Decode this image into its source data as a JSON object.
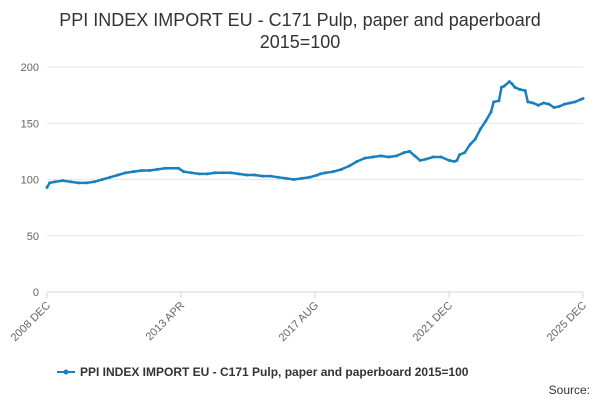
{
  "chart_data": {
    "type": "line",
    "title_lines": [
      "PPI INDEX IMPORT EU - C171 Pulp, paper and paperboard",
      "2015=100"
    ],
    "xlabel": "",
    "ylabel": "",
    "x_tick_labels": [
      "2008 DEC",
      "2013 APR",
      "2017 AUG",
      "2021 DEC",
      "2025 DEC"
    ],
    "x_range": [
      "2008-12",
      "2025-12"
    ],
    "ylim": [
      0,
      200
    ],
    "y_ticks": [
      0,
      50,
      100,
      150,
      200
    ],
    "grid": "horizontal",
    "legend_position": "bottom",
    "source_label": "Source:",
    "color": "#1a7fbf",
    "series": [
      {
        "name": "PPI INDEX IMPORT EU - C171 Pulp, paper and paperboard 2015=100",
        "points": [
          [
            "2008-12",
            93
          ],
          [
            "2009-01",
            97
          ],
          [
            "2009-03",
            98
          ],
          [
            "2009-06",
            99
          ],
          [
            "2009-09",
            98
          ],
          [
            "2009-12",
            97
          ],
          [
            "2010-03",
            97
          ],
          [
            "2010-06",
            98
          ],
          [
            "2010-09",
            100
          ],
          [
            "2010-12",
            102
          ],
          [
            "2011-03",
            104
          ],
          [
            "2011-06",
            106
          ],
          [
            "2011-09",
            107
          ],
          [
            "2011-12",
            108
          ],
          [
            "2012-03",
            108
          ],
          [
            "2012-06",
            109
          ],
          [
            "2012-09",
            110
          ],
          [
            "2012-12",
            110
          ],
          [
            "2013-02",
            110
          ],
          [
            "2013-04",
            107
          ],
          [
            "2013-07",
            106
          ],
          [
            "2013-10",
            105
          ],
          [
            "2014-01",
            105
          ],
          [
            "2014-04",
            106
          ],
          [
            "2014-07",
            106
          ],
          [
            "2014-10",
            106
          ],
          [
            "2015-01",
            105
          ],
          [
            "2015-04",
            104
          ],
          [
            "2015-07",
            104
          ],
          [
            "2015-10",
            103
          ],
          [
            "2016-01",
            103
          ],
          [
            "2016-04",
            102
          ],
          [
            "2016-07",
            101
          ],
          [
            "2016-10",
            100
          ],
          [
            "2017-01",
            101
          ],
          [
            "2017-04",
            102
          ],
          [
            "2017-07",
            104
          ],
          [
            "2017-08",
            105
          ],
          [
            "2017-10",
            106
          ],
          [
            "2018-01",
            107
          ],
          [
            "2018-04",
            109
          ],
          [
            "2018-07",
            112
          ],
          [
            "2018-10",
            116
          ],
          [
            "2019-01",
            119
          ],
          [
            "2019-04",
            120
          ],
          [
            "2019-07",
            121
          ],
          [
            "2019-10",
            120
          ],
          [
            "2020-01",
            121
          ],
          [
            "2020-04",
            124
          ],
          [
            "2020-06",
            125
          ],
          [
            "2020-08",
            121
          ],
          [
            "2020-10",
            117
          ],
          [
            "2020-12",
            118
          ],
          [
            "2021-03",
            120
          ],
          [
            "2021-06",
            120
          ],
          [
            "2021-09",
            117
          ],
          [
            "2021-11",
            116
          ],
          [
            "2021-12",
            117
          ],
          [
            "2022-01",
            122
          ],
          [
            "2022-03",
            124
          ],
          [
            "2022-05",
            131
          ],
          [
            "2022-07",
            136
          ],
          [
            "2022-09",
            145
          ],
          [
            "2022-11",
            152
          ],
          [
            "2023-01",
            160
          ],
          [
            "2023-02",
            169
          ],
          [
            "2023-04",
            170
          ],
          [
            "2023-05",
            182
          ],
          [
            "2023-06",
            183
          ],
          [
            "2023-08",
            187
          ],
          [
            "2023-09",
            185
          ],
          [
            "2023-10",
            182
          ],
          [
            "2023-12",
            180
          ],
          [
            "2024-02",
            179
          ],
          [
            "2024-03",
            169
          ],
          [
            "2024-05",
            168
          ],
          [
            "2024-07",
            166
          ],
          [
            "2024-09",
            168
          ],
          [
            "2024-11",
            167
          ],
          [
            "2025-01",
            164
          ],
          [
            "2025-03",
            165
          ],
          [
            "2025-05",
            167
          ],
          [
            "2025-07",
            168
          ],
          [
            "2025-09",
            169
          ],
          [
            "2025-11",
            171
          ],
          [
            "2025-12",
            172
          ]
        ]
      }
    ]
  }
}
